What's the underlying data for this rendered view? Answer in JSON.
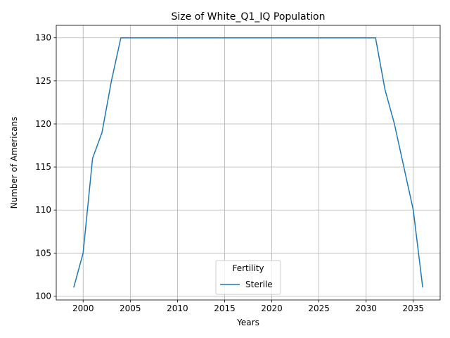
{
  "chart_data": {
    "type": "line",
    "title": "Size of White_Q1_IQ Population",
    "xlabel": "Years",
    "ylabel": "Number of Americans",
    "xlim": [
      1997.15,
      2037.85
    ],
    "ylim": [
      99.55,
      131.45
    ],
    "xticks": [
      2000,
      2005,
      2010,
      2015,
      2020,
      2025,
      2030,
      2035
    ],
    "yticks": [
      100,
      105,
      110,
      115,
      120,
      125,
      130
    ],
    "grid": true,
    "legend": {
      "title": "Fertility",
      "placement": "lower center"
    },
    "series": [
      {
        "name": "Sterile",
        "color": "#1f77b4",
        "x": [
          1999,
          2000,
          2001,
          2002,
          2003,
          2004,
          2005,
          2006,
          2007,
          2008,
          2009,
          2010,
          2011,
          2012,
          2013,
          2014,
          2015,
          2016,
          2017,
          2018,
          2019,
          2020,
          2021,
          2022,
          2023,
          2024,
          2025,
          2026,
          2027,
          2028,
          2029,
          2030,
          2031,
          2032,
          2033,
          2034,
          2035,
          2036
        ],
        "y": [
          101,
          105,
          116,
          119,
          125,
          130,
          130,
          130,
          130,
          130,
          130,
          130,
          130,
          130,
          130,
          130,
          130,
          130,
          130,
          130,
          130,
          130,
          130,
          130,
          130,
          130,
          130,
          130,
          130,
          130,
          130,
          130,
          130,
          124,
          120,
          115,
          110,
          101
        ]
      }
    ]
  }
}
